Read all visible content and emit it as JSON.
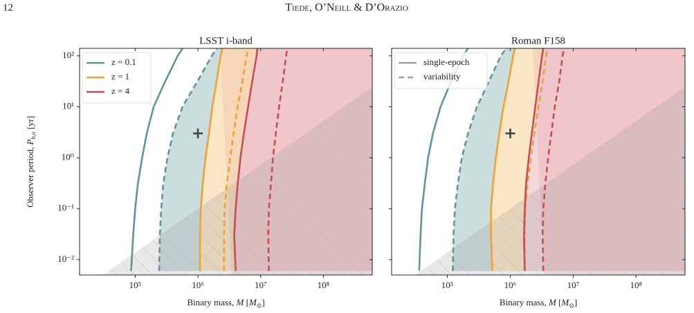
{
  "header": {
    "page_number": "12",
    "authors": "Tiede, O’Neill & D’Orazio"
  },
  "chart_data": [
    {
      "type": "line",
      "title": "LSST i-band",
      "xlabel": [
        "Binary mass, ",
        "M",
        " [",
        "M",
        "⊙",
        "]"
      ],
      "ylabel": [
        "Observer period, ",
        "P",
        "b,o",
        " [yr]"
      ],
      "xscale": "log",
      "yscale": "log",
      "xlim": [
        13000,
        600000000
      ],
      "ylim": [
        0.005,
        140
      ],
      "xticks": [
        {
          "value": 100000,
          "label": "10⁵"
        },
        {
          "value": 1000000,
          "label": "10⁶"
        },
        {
          "value": 10000000,
          "label": "10⁷"
        },
        {
          "value": 100000000,
          "label": "10⁸"
        }
      ],
      "yticks": [
        {
          "value": 0.01,
          "label": "10⁻²"
        },
        {
          "value": 0.1,
          "label": "10⁻¹"
        },
        {
          "value": 1,
          "label": "10⁰"
        },
        {
          "value": 10,
          "label": "10¹"
        },
        {
          "value": 100,
          "label": "10²"
        }
      ],
      "ytick_labels": true,
      "legend": [
        {
          "label": "z = 0.1",
          "color": "#5f9598",
          "linestyle": "solid"
        },
        {
          "label": "z = 1",
          "color": "#e8a33d",
          "linestyle": "solid"
        },
        {
          "label": "z = 4",
          "color": "#c44e52",
          "linestyle": "solid"
        }
      ],
      "legend_loc": "upper left",
      "marker": {
        "x": 1000000,
        "y": 3
      },
      "series": [
        {
          "color": "#5f9598",
          "linestyle": "solid",
          "x": [
            86000,
            93000,
            100000,
            110000,
            129000,
            153000,
            197000,
            295000,
            476000,
            570000
          ],
          "y": [
            0.006,
            0.03,
            0.1,
            0.3,
            1,
            3,
            10,
            30,
            100,
            140
          ]
        },
        {
          "color": "#5f9598",
          "linestyle": "dashed",
          "x": [
            241000,
            247000,
            260000,
            280000,
            326000,
            400000,
            568000,
            960000,
            1670000,
            2000000
          ],
          "y": [
            0.006,
            0.03,
            0.1,
            0.3,
            1,
            3,
            10,
            30,
            100,
            140
          ]
        },
        {
          "color": "#e8a33d",
          "linestyle": "solid",
          "x": [
            1080000,
            1080000,
            1110000,
            1190000,
            1320000,
            1500000,
            1700000,
            1970000,
            2290000,
            2470000
          ],
          "y": [
            0.006,
            0.03,
            0.1,
            0.3,
            1,
            3,
            10,
            30,
            100,
            140
          ]
        },
        {
          "color": "#e8a33d",
          "linestyle": "dashed",
          "x": [
            2600000,
            2600000,
            2670000,
            2880000,
            3260000,
            3700000,
            4300000,
            5100000,
            5970000,
            6300000
          ],
          "y": [
            0.006,
            0.03,
            0.1,
            0.3,
            1,
            3,
            10,
            30,
            100,
            140
          ]
        },
        {
          "color": "#c44e52",
          "linestyle": "solid",
          "x": [
            3990000,
            3790000,
            3990000,
            4300000,
            4760000,
            5400000,
            6300000,
            7300000,
            8600000,
            8900000
          ],
          "y": [
            0.006,
            0.03,
            0.1,
            0.3,
            1,
            3,
            10,
            30,
            100,
            140
          ]
        },
        {
          "color": "#c44e52",
          "linestyle": "dashed",
          "x": [
            13500000,
            13200000,
            13500000,
            14600000,
            15700000,
            17400000,
            19700000,
            22400000,
            25400000,
            26700000
          ],
          "y": [
            0.006,
            0.03,
            0.1,
            0.3,
            1,
            3,
            10,
            30,
            100,
            140
          ]
        }
      ]
    },
    {
      "type": "line",
      "title": "Roman F158",
      "xlabel": [
        "Binary mass, ",
        "M",
        " [",
        "M",
        "⊙",
        "]"
      ],
      "xscale": "log",
      "yscale": "log",
      "xlim": [
        13000,
        600000000
      ],
      "ylim": [
        0.005,
        140
      ],
      "xticks": [
        {
          "value": 100000,
          "label": "10⁵"
        },
        {
          "value": 1000000,
          "label": "10⁶"
        },
        {
          "value": 10000000,
          "label": "10⁷"
        },
        {
          "value": 100000000,
          "label": "10⁸"
        }
      ],
      "yticks": [
        0.01,
        0.1,
        1,
        10,
        100
      ],
      "ytick_labels": false,
      "legend": [
        {
          "label": "single-epoch",
          "color": "#a0a0a0",
          "linestyle": "solid"
        },
        {
          "label": "variability",
          "color": "#a0a0a0",
          "linestyle": "dashed"
        }
      ],
      "legend_loc": "upper left",
      "marker": {
        "x": 1000000,
        "y": 3
      },
      "series": [
        {
          "color": "#5f9598",
          "linestyle": "solid",
          "x": [
            35600,
            37500,
            39400,
            43600,
            49400,
            59000,
            78000,
            113000,
            178000,
            213000
          ],
          "y": [
            0.006,
            0.03,
            0.1,
            0.3,
            1,
            3,
            10,
            30,
            100,
            140
          ]
        },
        {
          "color": "#5f9598",
          "linestyle": "dashed",
          "x": [
            122000,
            125000,
            132000,
            146000,
            170000,
            213000,
            295000,
            450000,
            710000,
            860000
          ],
          "y": [
            0.006,
            0.03,
            0.1,
            0.3,
            1,
            3,
            10,
            30,
            100,
            140
          ]
        },
        {
          "color": "#e8a33d",
          "linestyle": "solid",
          "x": [
            520000,
            494000,
            494000,
            530000,
            590000,
            670000,
            780000,
            930000,
            1110000,
            1190000
          ],
          "y": [
            0.006,
            0.03,
            0.1,
            0.3,
            1,
            3,
            10,
            30,
            100,
            140
          ]
        },
        {
          "color": "#e8a33d",
          "linestyle": "dashed",
          "x": [
            1700000,
            1700000,
            1740000,
            1880000,
            2130000,
            2410000,
            2800000,
            3260000,
            3700000,
            3900000
          ],
          "y": [
            0.006,
            0.03,
            0.1,
            0.3,
            1,
            3,
            10,
            30,
            100,
            140
          ]
        },
        {
          "color": "#c44e52",
          "linestyle": "solid",
          "x": [
            1700000,
            1650000,
            1700000,
            1780000,
            1970000,
            2200000,
            2500000,
            2800000,
            3200000,
            3350000
          ],
          "y": [
            0.006,
            0.03,
            0.1,
            0.3,
            1,
            3,
            10,
            30,
            100,
            140
          ]
        },
        {
          "color": "#c44e52",
          "linestyle": "dashed",
          "x": [
            3350000,
            3270000,
            3350000,
            3600000,
            4000000,
            4500000,
            5100000,
            5970000,
            6800000,
            7100000
          ],
          "y": [
            0.006,
            0.03,
            0.1,
            0.3,
            1,
            3,
            10,
            30,
            100,
            140
          ]
        }
      ]
    }
  ]
}
